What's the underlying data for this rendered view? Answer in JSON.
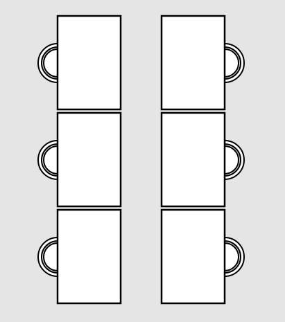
{
  "plan": {
    "background_color": "#e5e5e5",
    "desk_fill": "#ffffff",
    "chair_fill": "#ffffff",
    "stroke_color": "#000000",
    "desk_rows": 3,
    "desk_columns": 2,
    "chair_icon": "office-chair-icon",
    "chairs_per_desk": 1,
    "left_column_chair_side": "left",
    "right_column_chair_side": "right"
  }
}
